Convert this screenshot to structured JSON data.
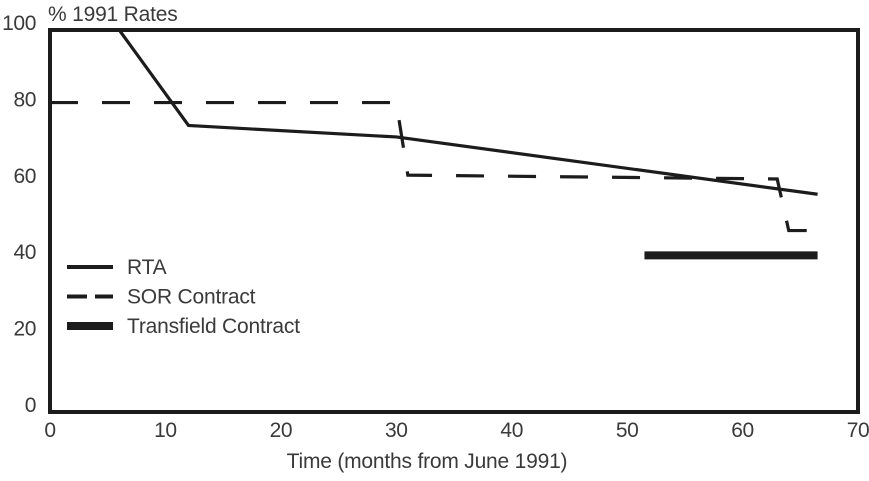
{
  "chart": {
    "title": "% 1991 Rates",
    "xlabel": "Time (months from June 1991)"
  },
  "colors": {
    "line": "#1c1c1c",
    "text": "#3a3a3a",
    "background": "#ffffff"
  },
  "chart_data": {
    "type": "line",
    "title": "% 1991 Rates",
    "xlabel": "Time (months from June 1991)",
    "ylabel": "% 1991 Rates",
    "xlim": [
      0,
      70
    ],
    "ylim": [
      0,
      100
    ],
    "x_ticks": [
      0,
      10,
      20,
      30,
      40,
      50,
      60,
      70
    ],
    "y_ticks": [
      0,
      20,
      40,
      60,
      80,
      100
    ],
    "grid": false,
    "legend_position": "inside lower-left",
    "series": [
      {
        "name": "RTA",
        "style": "solid",
        "stroke_width": 3.2,
        "points": [
          [
            6,
            100
          ],
          [
            12,
            75
          ],
          [
            30,
            72
          ],
          [
            66.5,
            57
          ]
        ]
      },
      {
        "name": "SOR Contract",
        "style": "dashed",
        "stroke_width": 3.2,
        "points": [
          [
            0,
            81
          ],
          [
            30,
            81
          ],
          [
            31,
            62
          ],
          [
            63,
            61
          ],
          [
            64,
            47.5
          ],
          [
            66.5,
            47.5
          ]
        ]
      },
      {
        "name": "Transfield Contract",
        "style": "thick-solid",
        "stroke_width": 8,
        "points": [
          [
            51.5,
            41
          ],
          [
            66.5,
            41
          ]
        ]
      }
    ]
  }
}
